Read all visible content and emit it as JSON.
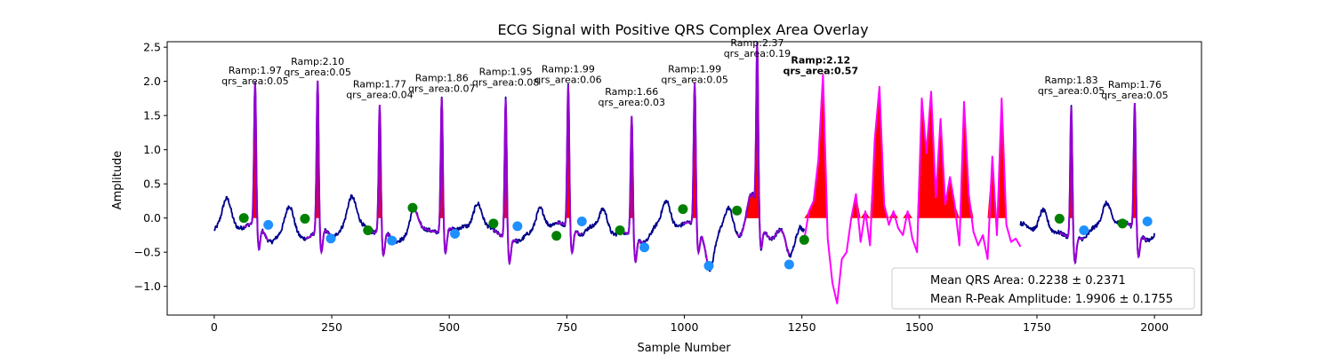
{
  "chart_data": {
    "type": "line",
    "title": "ECG Signal with Positive QRS Complex Area Overlay",
    "xlabel": "Sample Number",
    "ylabel": "Amplitude",
    "xlim": [
      -100,
      2100
    ],
    "ylim": [
      -1.42,
      2.58
    ],
    "xticks": [
      0,
      250,
      500,
      750,
      1000,
      1250,
      1500,
      1750,
      2000
    ],
    "yticks": [
      -1.0,
      -0.5,
      0.0,
      0.5,
      1.0,
      1.5,
      2.0,
      2.5
    ],
    "grid": false,
    "colors": {
      "signal": "#00008b",
      "qrs_segment": "#9400d3",
      "qrs_segment_noisy": "#ff00ff",
      "area_fill": "#ff0000",
      "onset_marker": "#008000",
      "offset_marker": "#1e90ff",
      "legend_border": "#cccccc"
    },
    "beats": [
      {
        "r_x": 87,
        "r_amp": 1.97,
        "qrs_area": 0.05,
        "ramp_label": "Ramp:1.97",
        "area_label": "qrs_area:0.05",
        "onset": [
          63,
          0.0
        ],
        "offset": [
          115,
          -0.1
        ]
      },
      {
        "r_x": 220,
        "r_amp": 2.1,
        "qrs_area": 0.05,
        "ramp_label": "Ramp:2.10",
        "area_label": "qrs_area:0.05",
        "onset": [
          193,
          -0.01
        ],
        "offset": [
          248,
          -0.3
        ]
      },
      {
        "r_x": 352,
        "r_amp": 1.77,
        "qrs_area": 0.04,
        "ramp_label": "Ramp:1.77",
        "area_label": "qrs_area:0.04",
        "onset": [
          327,
          -0.18
        ],
        "offset": [
          378,
          -0.33
        ]
      },
      {
        "r_x": 484,
        "r_amp": 1.86,
        "qrs_area": 0.07,
        "ramp_label": "Ramp:1.86",
        "area_label": "qrs_area:0.07",
        "onset": [
          422,
          0.15
        ],
        "offset": [
          512,
          -0.23
        ]
      },
      {
        "r_x": 620,
        "r_amp": 1.95,
        "qrs_area": 0.08,
        "ramp_label": "Ramp:1.95",
        "area_label": "qrs_area:0.08",
        "onset": [
          594,
          -0.08
        ],
        "offset": [
          645,
          -0.12
        ]
      },
      {
        "r_x": 753,
        "r_amp": 1.99,
        "qrs_area": 0.06,
        "ramp_label": "Ramp:1.99",
        "area_label": "qrs_area:0.06",
        "onset": [
          728,
          -0.26
        ],
        "offset": [
          782,
          -0.05
        ]
      },
      {
        "r_x": 888,
        "r_amp": 1.66,
        "qrs_area": 0.03,
        "ramp_label": "Ramp:1.66",
        "area_label": "qrs_area:0.03",
        "onset": [
          863,
          -0.18
        ],
        "offset": [
          915,
          -0.43
        ]
      },
      {
        "r_x": 1022,
        "r_amp": 1.99,
        "qrs_area": 0.05,
        "ramp_label": "Ramp:1.99",
        "area_label": "qrs_area:0.05",
        "onset": [
          997,
          0.13
        ],
        "offset": [
          1052,
          -0.7
        ]
      },
      {
        "r_x": 1155,
        "r_amp": 2.37,
        "qrs_area": 0.19,
        "ramp_label": "Ramp:2.37",
        "area_label": "qrs_area:0.19",
        "onset": [
          1112,
          0.11
        ],
        "offset": [
          1223,
          -0.68
        ]
      },
      {
        "r_x": 1290,
        "r_amp": 2.12,
        "qrs_area": 0.57,
        "ramp_label": "Ramp:2.12",
        "area_label": "qrs_area:0.57",
        "onset": [
          1255,
          -0.32
        ],
        "offset": [
          1255,
          -0.32
        ]
      },
      {
        "r_x": 1823,
        "r_amp": 1.83,
        "qrs_area": 0.05,
        "ramp_label": "Ramp:1.83",
        "area_label": "qrs_area:0.05",
        "onset": [
          1798,
          -0.01
        ],
        "offset": [
          1850,
          -0.18
        ]
      },
      {
        "r_x": 1958,
        "r_amp": 1.76,
        "qrs_area": 0.05,
        "ramp_label": "Ramp:1.76",
        "area_label": "qrs_area:0.05",
        "onset": [
          1932,
          -0.08
        ],
        "offset": [
          1985,
          -0.05
        ]
      }
    ],
    "noisy_segment": {
      "x": [
        1255,
        1265,
        1275,
        1285,
        1295,
        1305,
        1315,
        1325,
        1335,
        1345,
        1355,
        1365,
        1375,
        1385,
        1395,
        1405,
        1415,
        1425,
        1435,
        1445,
        1455,
        1465,
        1475,
        1485,
        1495,
        1505,
        1515,
        1525,
        1535,
        1545,
        1555,
        1565,
        1575,
        1585,
        1595,
        1605,
        1615,
        1625,
        1635,
        1645,
        1655,
        1665,
        1675,
        1685,
        1695,
        1705,
        1715
      ],
      "y": [
        -0.32,
        0.1,
        0.25,
        0.85,
        2.1,
        -0.3,
        -0.95,
        -1.25,
        -0.6,
        -0.5,
        0.0,
        0.35,
        -0.35,
        0.1,
        -0.4,
        1.15,
        1.92,
        0.2,
        -0.1,
        0.1,
        -0.15,
        -0.25,
        0.1,
        -0.3,
        -0.5,
        1.75,
        0.95,
        1.85,
        0.3,
        1.45,
        0.2,
        0.6,
        0.2,
        -0.4,
        1.7,
        0.35,
        -0.2,
        -0.4,
        -0.25,
        -0.6,
        0.9,
        -0.25,
        1.75,
        -0.1,
        -0.35,
        -0.3,
        -0.42
      ]
    },
    "legend": {
      "placement": "lower-right",
      "entries": [
        "Mean QRS Area: 0.2238 ± 0.2371",
        "Mean R-Peak Amplitude: 1.9906 ± 0.1755"
      ]
    }
  }
}
